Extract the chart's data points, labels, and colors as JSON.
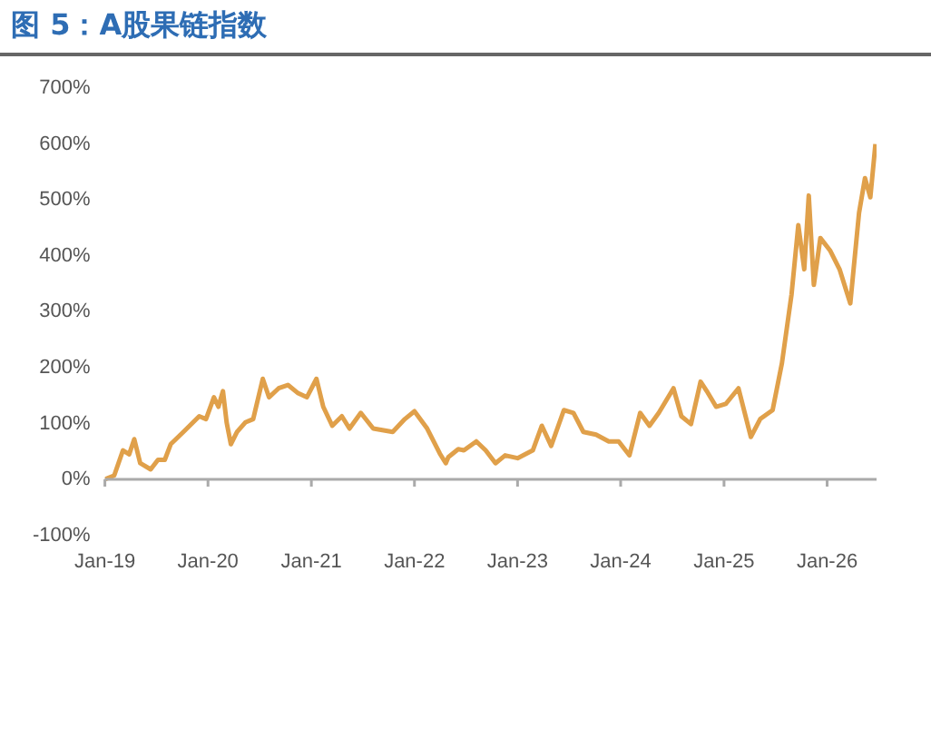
{
  "chart_data": {
    "type": "line",
    "title": "图 5：A股果链指数",
    "x": [
      "2019-01-01",
      "2019-02-03",
      "2019-03-06",
      "2019-03-28",
      "2019-04-15",
      "2019-05-06",
      "2019-06-12",
      "2019-07-08",
      "2019-08-01",
      "2019-08-22",
      "2019-10-06",
      "2019-12-01",
      "2019-12-25",
      "2020-01-22",
      "2020-02-07",
      "2020-02-23",
      "2020-03-07",
      "2020-03-22",
      "2020-04-13",
      "2020-05-12",
      "2020-06-09",
      "2020-07-13",
      "2020-08-04",
      "2020-09-07",
      "2020-10-10",
      "2020-11-13",
      "2020-12-16",
      "2021-01-19",
      "2021-02-12",
      "2021-03-16",
      "2021-04-19",
      "2021-05-16",
      "2021-06-25",
      "2021-08-08",
      "2021-10-16",
      "2021-11-28",
      "2022-01-01",
      "2022-02-15",
      "2022-04-01",
      "2022-04-22",
      "2022-05-01",
      "2022-06-05",
      "2022-06-25",
      "2022-08-08",
      "2022-09-10",
      "2022-10-15",
      "2022-11-18",
      "2023-01-01",
      "2023-02-24",
      "2023-03-28",
      "2023-04-30",
      "2023-06-14",
      "2023-07-18",
      "2023-08-22",
      "2023-10-06",
      "2023-11-20",
      "2023-12-25",
      "2024-02-01",
      "2024-03-10",
      "2024-04-12",
      "2024-05-15",
      "2024-07-06",
      "2024-08-03",
      "2024-09-06",
      "2024-10-10",
      "2024-11-01",
      "2024-12-04",
      "2025-01-07",
      "2025-02-21",
      "2025-04-06",
      "2025-05-09",
      "2025-06-22",
      "2025-07-25",
      "2025-08-28",
      "2025-09-21",
      "2025-10-12",
      "2025-10-28",
      "2025-11-15",
      "2025-12-08",
      "2026-01-11",
      "2026-02-14",
      "2026-03-24",
      "2026-04-24",
      "2026-05-15",
      "2026-06-03",
      "2026-06-21"
    ],
    "series": [
      {
        "color": "#e0a04a",
        "values": [
          0,
          7,
          52,
          45,
          72,
          29,
          18,
          35,
          35,
          63,
          85,
          113,
          108,
          147,
          130,
          158,
          102,
          63,
          85,
          102,
          108,
          180,
          147,
          163,
          169,
          155,
          147,
          180,
          130,
          96,
          113,
          91,
          119,
          91,
          85,
          108,
          122,
          91,
          46,
          29,
          40,
          54,
          52,
          68,
          52,
          29,
          43,
          38,
          52,
          96,
          60,
          124,
          119,
          85,
          80,
          68,
          68,
          43,
          119,
          96,
          119,
          163,
          113,
          99,
          175,
          158,
          130,
          135,
          163,
          76,
          108,
          124,
          208,
          331,
          455,
          376,
          508,
          348,
          432,
          410,
          376,
          315,
          477,
          539,
          505,
          600
        ]
      }
    ],
    "xlim": [
      "2019-01-01",
      "2026-06-25"
    ],
    "xticks": [
      {
        "value": "2019-01-01",
        "label": "Jan-19"
      },
      {
        "value": "2020-01-01",
        "label": "Jan-20"
      },
      {
        "value": "2021-01-01",
        "label": "Jan-21"
      },
      {
        "value": "2022-01-01",
        "label": "Jan-22"
      },
      {
        "value": "2023-01-01",
        "label": "Jan-23"
      },
      {
        "value": "2024-01-01",
        "label": "Jan-24"
      },
      {
        "value": "2025-01-01",
        "label": "Jan-25"
      },
      {
        "value": "2026-01-01",
        "label": "Jan-26"
      }
    ],
    "ylim": [
      -100,
      700
    ],
    "yticks": [
      {
        "value": -100,
        "label": "-100%"
      },
      {
        "value": 0,
        "label": "0%"
      },
      {
        "value": 100,
        "label": "100%"
      },
      {
        "value": 200,
        "label": "200%"
      },
      {
        "value": 300,
        "label": "300%"
      },
      {
        "value": 400,
        "label": "400%"
      },
      {
        "value": 500,
        "label": "500%"
      },
      {
        "value": 600,
        "label": "600%"
      },
      {
        "value": 700,
        "label": "700%"
      }
    ],
    "ref_lines": [
      {
        "axis": "y",
        "value": 0,
        "color": "#aaaaaa"
      }
    ],
    "grid": false,
    "legend": false,
    "marker": "none",
    "line_style": "solid"
  }
}
